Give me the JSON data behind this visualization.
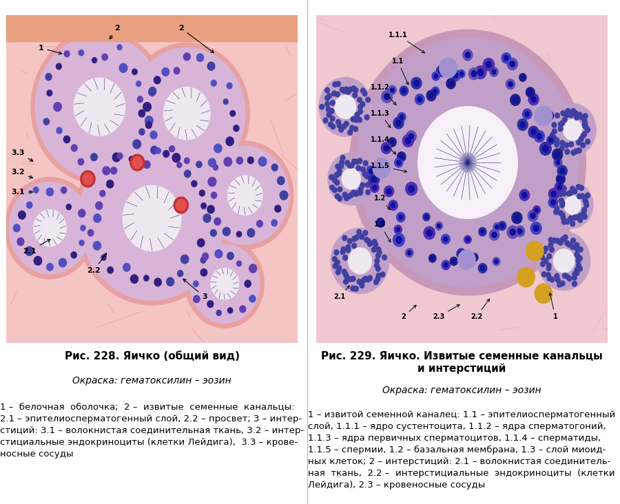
{
  "left_image_path": null,
  "right_image_path": null,
  "bg_color": "#ffffff",
  "left_title": "Рис. 228. Яичко (общий вид)",
  "left_subtitle": "Окраска: гематоксилин – эозин",
  "left_caption": "1 –  белочная  оболочка;  2 –  извитые  семенные  канальцы:\n2.1 – эпителиосперматогенный слой, 2.2 – просвет; 3 – интер-\nстиций: 3.1 – волокнистая соединительная ткань, 3.2 – интер-\nстициальные эндокриноциты (клетки Лейдига),  3.3 – крове-\nносные сосуды",
  "right_title": "Рис. 229. Яичко. Извитые семенные канальцы\nи интерстиций",
  "right_subtitle": "Окраска: гематоксилин – эозин",
  "right_caption": "1 – извитой семенной каналец: 1.1 – эпителиосперматогенный\nслой, 1.1.1 – ядро сустентоцита, 1.1.2 – ядра сперматогоний,\n1.1.3 – ядра первичных сперматоцитов, 1.1.4 – сперматиды,\n1.1.5 – спермии, 1.2 – базальная мембрана, 1.3 – слой миоид-\nных клеток; 2 – интерстиций: 2.1 – волокнистая соединитель-\nная  ткань,  2.2 –  интерстициальные  эндокриноциты  (клетки\nЛейдига), 2.3 – кровеносные сосуды",
  "title_fontsize": 11,
  "subtitle_fontsize": 10,
  "caption_fontsize": 9.5,
  "image_border_color": "#cccccc",
  "divider_color": "#888888"
}
